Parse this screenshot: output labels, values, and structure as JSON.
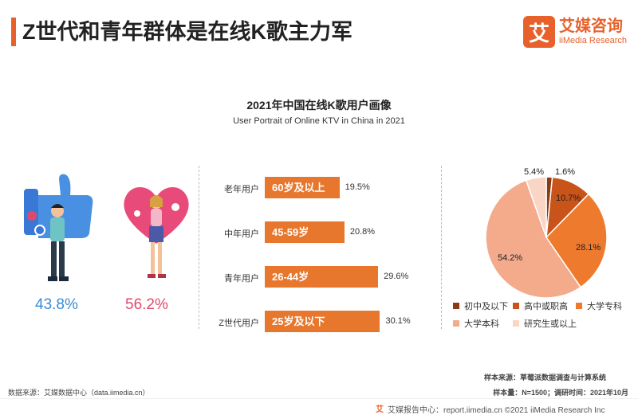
{
  "header": {
    "title": "Z世代和青年群体是在线K歌主力军",
    "logo_mark": "艾",
    "logo_cn": "艾媒咨询",
    "logo_en": "iiMedia Research"
  },
  "chart_data": [
    {
      "type": "pie",
      "title": "2021年中国在线K歌用户画像",
      "subtitle": "User Portrait of Online KTV in China in 2021",
      "categories": [
        "男",
        "女"
      ],
      "values": [
        43.8,
        56.2
      ],
      "labels": [
        "43.8%",
        "56.2%"
      ],
      "colors": [
        "#3a8cd1",
        "#e04a6a"
      ]
    },
    {
      "type": "bar",
      "orientation": "horizontal",
      "categories": [
        "老年用户",
        "中年用户",
        "青年用户",
        "Z世代用户"
      ],
      "bar_labels": [
        "60岁及以上",
        "45-59岁",
        "26-44岁",
        "25岁及以下"
      ],
      "values": [
        19.5,
        20.8,
        29.6,
        30.1
      ],
      "value_labels": [
        "19.5%",
        "20.8%",
        "29.6%",
        "30.1%"
      ],
      "color": "#e8772e"
    },
    {
      "type": "pie",
      "categories": [
        "初中及以下",
        "高中或职高",
        "大学专科",
        "大学本科",
        "研究生或以上"
      ],
      "values": [
        1.6,
        10.7,
        28.1,
        54.2,
        5.4
      ],
      "value_labels": [
        "1.6%",
        "10.7%",
        "28.1%",
        "54.2%",
        "5.4%"
      ],
      "colors": [
        "#8c3c12",
        "#c8541a",
        "#ee7a2e",
        "#f4ab8c",
        "#f9d5c6"
      ],
      "legend_position": "bottom"
    }
  ],
  "footer": {
    "source": "数据来源：艾媒数据中心（data.iimedia.cn）",
    "sample_source": "样本来源：草莓派数据调查与计算系统",
    "sample_size": "样本量：N=1500；调研时间：2021年10月",
    "bottom_logo": "艾",
    "bottom": "艾媒报告中心：report.iimedia.cn    ©2021  iiMedia Research  Inc"
  },
  "colors": {
    "accent": "#e8612c"
  }
}
